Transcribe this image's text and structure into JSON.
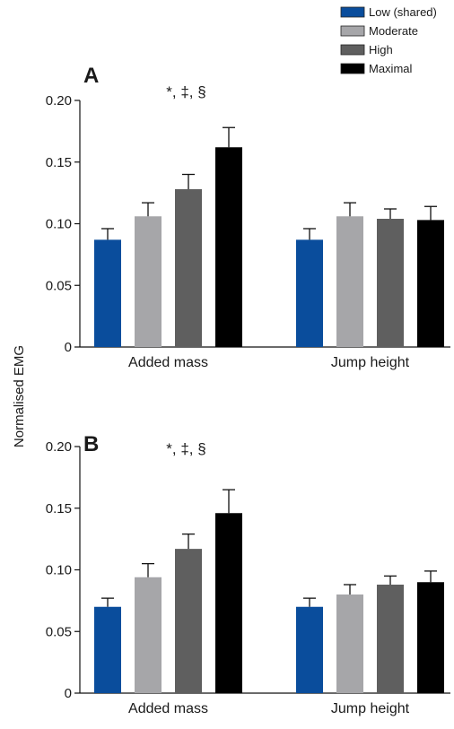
{
  "ylabel": "Normalised EMG",
  "legend": {
    "position": "top-right",
    "items": [
      {
        "label": "Low (shared)",
        "color": "#0a4d9c"
      },
      {
        "label": "Moderate",
        "color": "#a6a6a9"
      },
      {
        "label": "High",
        "color": "#5f5f5f"
      },
      {
        "label": "Maximal",
        "color": "#000000"
      }
    ]
  },
  "chart_data": [
    {
      "type": "bar",
      "panel": "A",
      "categories": [
        "Added mass",
        "Jump height"
      ],
      "ylim": [
        0,
        0.2
      ],
      "yticks": [
        "0",
        "0.05",
        "0.10",
        "0.15",
        "0.20"
      ],
      "series": [
        {
          "name": "Low (shared)",
          "values": [
            0.087,
            0.087
          ],
          "errors": [
            0.009,
            0.009
          ]
        },
        {
          "name": "Moderate",
          "values": [
            0.106,
            0.106
          ],
          "errors": [
            0.011,
            0.011
          ]
        },
        {
          "name": "High",
          "values": [
            0.128,
            0.104
          ],
          "errors": [
            0.012,
            0.008
          ]
        },
        {
          "name": "Maximal",
          "values": [
            0.162,
            0.103
          ],
          "errors": [
            0.016,
            0.011
          ]
        }
      ],
      "annotation": "*, ‡, §"
    },
    {
      "type": "bar",
      "panel": "B",
      "categories": [
        "Added mass",
        "Jump height"
      ],
      "ylim": [
        0,
        0.2
      ],
      "yticks": [
        "0",
        "0.05",
        "0.10",
        "0.15",
        "0.20"
      ],
      "series": [
        {
          "name": "Low (shared)",
          "values": [
            0.07,
            0.07
          ],
          "errors": [
            0.007,
            0.007
          ]
        },
        {
          "name": "Moderate",
          "values": [
            0.094,
            0.08
          ],
          "errors": [
            0.011,
            0.008
          ]
        },
        {
          "name": "High",
          "values": [
            0.117,
            0.088
          ],
          "errors": [
            0.012,
            0.007
          ]
        },
        {
          "name": "Maximal",
          "values": [
            0.146,
            0.09
          ],
          "errors": [
            0.019,
            0.009
          ]
        }
      ],
      "annotation": "*, ‡, §"
    }
  ]
}
